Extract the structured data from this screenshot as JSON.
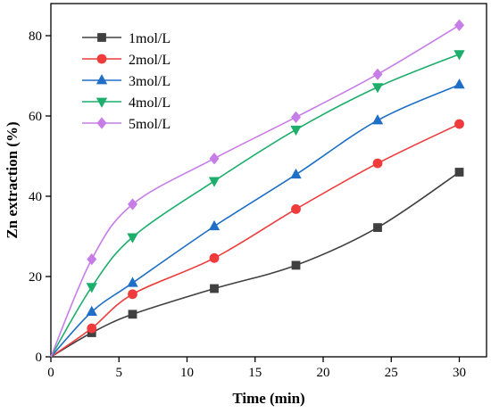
{
  "chart_data": {
    "type": "line",
    "xlabel": "Time (min)",
    "ylabel": "Zn extraction (%)",
    "xlim": [
      0,
      32
    ],
    "ylim": [
      0,
      88
    ],
    "x_ticks": [
      0,
      5,
      10,
      15,
      20,
      25,
      30
    ],
    "y_ticks": [
      0,
      20,
      40,
      60,
      80
    ],
    "x": [
      0,
      3,
      6,
      12,
      18,
      24,
      30
    ],
    "legend_position": "top-left",
    "grid": false,
    "series": [
      {
        "name": "1mol/L",
        "color": "#404040",
        "marker": "square",
        "values": [
          0,
          6.0,
          10.6,
          17.0,
          22.8,
          32.2,
          46.0
        ]
      },
      {
        "name": "2mol/L",
        "color": "#ef3b3b",
        "marker": "circle",
        "values": [
          0,
          7.1,
          15.6,
          24.6,
          36.8,
          48.2,
          58.0
        ]
      },
      {
        "name": "3mol/L",
        "color": "#1f6fc7",
        "marker": "triangle-up",
        "values": [
          0,
          11.2,
          18.4,
          32.5,
          45.4,
          58.9,
          67.8
        ]
      },
      {
        "name": "4mol/L",
        "color": "#1eae6b",
        "marker": "triangle-down",
        "values": [
          0,
          17.4,
          29.8,
          43.8,
          56.6,
          67.2,
          75.4
        ]
      },
      {
        "name": "5mol/L",
        "color": "#c77de8",
        "marker": "diamond",
        "values": [
          0,
          24.3,
          38.0,
          49.4,
          59.7,
          70.4,
          82.6
        ]
      }
    ]
  }
}
